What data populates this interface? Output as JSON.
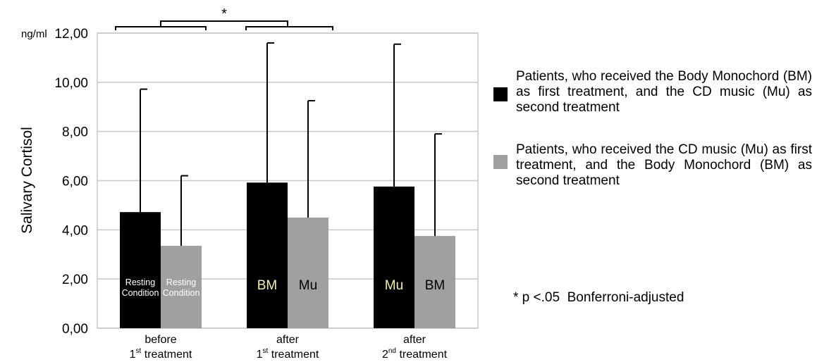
{
  "chart_data": {
    "type": "bar",
    "unit_label": "ng/ml",
    "ylabel": "Salivary  Cortisol",
    "ylim": [
      0,
      12
    ],
    "yticks": [
      "0,00",
      "2,00",
      "4,00",
      "6,00",
      "8,00",
      "10,00",
      "12,00"
    ],
    "grid": true,
    "categories": [
      {
        "line1": "before",
        "num": "1",
        "sup": "st",
        "rest": " treatment"
      },
      {
        "line1": "after",
        "num": "1",
        "sup": "st",
        "rest": " treatment"
      },
      {
        "line1": "after",
        "num": "2",
        "sup": "nd",
        "rest": " treatment"
      }
    ],
    "series": [
      {
        "color": "#000000",
        "values": [
          4.72,
          5.92,
          5.76
        ],
        "error_upper": [
          9.72,
          11.6,
          11.55
        ],
        "bar_labels": [
          "Resting Condition",
          "BM",
          "Mu"
        ]
      },
      {
        "color": "#a0a0a0",
        "values": [
          3.35,
          4.5,
          3.75
        ],
        "error_upper": [
          6.2,
          9.25,
          7.9
        ],
        "bar_labels": [
          "Resting Condition",
          "Mu",
          "BM"
        ]
      }
    ],
    "significance": {
      "marker": "*"
    }
  },
  "legend": {
    "items": [
      {
        "color": "#000000",
        "text": "Patients, who received the Body Monochord (BM) as first treatment, and the CD music (Mu) as second treatment"
      },
      {
        "color": "#a0a0a0",
        "text": "Patients, who received the CD music (Mu) as first treatment, and the Body Monochord (BM) as second treatment"
      }
    ]
  },
  "footnote": "* p <.05  Bonferroni-adjusted"
}
